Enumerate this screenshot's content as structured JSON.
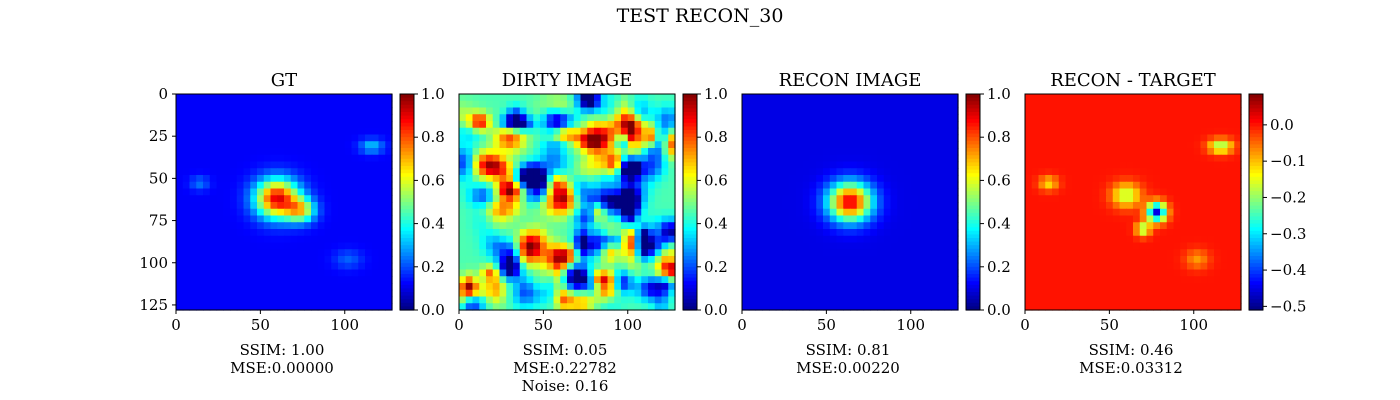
{
  "figure": {
    "title": "TEST RECON_30"
  },
  "colormap": [
    "#00007f",
    "#0000ff",
    "#007fff",
    "#00ffff",
    "#7fff7f",
    "#ffff00",
    "#ff7f00",
    "#ff0000",
    "#7f0000"
  ],
  "chart_data": [
    {
      "type": "heatmap",
      "title": "GT",
      "xlim": [
        0,
        128
      ],
      "ylim": [
        128,
        0
      ],
      "xticks": [
        0,
        50,
        100
      ],
      "yticks": [
        0,
        25,
        50,
        75,
        100,
        125
      ],
      "show_yticks": true,
      "vmin": 0.0,
      "vmax": 1.0,
      "colorbar_ticks": [
        "0.0",
        "0.2",
        "0.4",
        "0.6",
        "0.8",
        "1.0"
      ],
      "colorbar_values": [
        0.0,
        0.2,
        0.4,
        0.6,
        0.8,
        1.0
      ],
      "background": 0.12,
      "blobs": [
        {
          "x": 60,
          "y": 62,
          "sx": 9,
          "sy": 8,
          "a": 0.78
        },
        {
          "x": 74,
          "y": 69,
          "sx": 6,
          "sy": 5,
          "a": 0.45
        },
        {
          "x": 116,
          "y": 31,
          "sx": 5,
          "sy": 3,
          "a": 0.2
        },
        {
          "x": 14,
          "y": 53,
          "sx": 4,
          "sy": 3,
          "a": 0.12
        },
        {
          "x": 102,
          "y": 98,
          "sx": 6,
          "sy": 4,
          "a": 0.1
        }
      ],
      "caption": [
        "SSIM: 1.00",
        "MSE:0.00000"
      ]
    },
    {
      "type": "heatmap",
      "title": "DIRTY IMAGE",
      "xlim": [
        0,
        128
      ],
      "ylim": [
        128,
        0
      ],
      "xticks": [
        0,
        50,
        100
      ],
      "yticks": [
        0,
        25,
        50,
        75,
        100,
        125
      ],
      "show_yticks": false,
      "vmin": 0.0,
      "vmax": 1.0,
      "colorbar_ticks": [
        "0.0",
        "0.2",
        "0.4",
        "0.6",
        "0.8",
        "1.0"
      ],
      "colorbar_values": [
        0.0,
        0.2,
        0.4,
        0.6,
        0.8,
        1.0
      ],
      "noise": true,
      "caption": [
        "SSIM: 0.05",
        "MSE:0.22782",
        "Noise: 0.16"
      ]
    },
    {
      "type": "heatmap",
      "title": "RECON IMAGE",
      "xlim": [
        0,
        128
      ],
      "ylim": [
        128,
        0
      ],
      "xticks": [
        0,
        50,
        100
      ],
      "yticks": [
        0,
        25,
        50,
        75,
        100,
        125
      ],
      "show_yticks": false,
      "vmin": 0.0,
      "vmax": 1.0,
      "colorbar_ticks": [
        "0.0",
        "0.2",
        "0.4",
        "0.6",
        "0.8",
        "1.0"
      ],
      "colorbar_values": [
        0.0,
        0.2,
        0.4,
        0.6,
        0.8,
        1.0
      ],
      "background": 0.1,
      "blobs": [
        {
          "x": 64,
          "y": 64,
          "sx": 9,
          "sy": 8,
          "a": 0.8
        }
      ],
      "caption": [
        "SSIM: 0.81",
        "MSE:0.00220"
      ]
    },
    {
      "type": "heatmap",
      "title": "RECON - TARGET",
      "xlim": [
        0,
        128
      ],
      "ylim": [
        128,
        0
      ],
      "xticks": [
        0,
        50,
        100
      ],
      "yticks": [
        0,
        25,
        50,
        75,
        100,
        125
      ],
      "show_yticks": false,
      "vmin": -0.51,
      "vmax": 0.085,
      "colorbar_ticks": [
        "0.0",
        "−0.1",
        "−0.2",
        "−0.3",
        "−0.4",
        "−0.5"
      ],
      "colorbar_values": [
        0.0,
        -0.1,
        -0.2,
        -0.3,
        -0.4,
        -0.5
      ],
      "background": 0.0,
      "blobs": [
        {
          "x": 78,
          "y": 70,
          "sx": 4,
          "sy": 4,
          "a": -0.45
        },
        {
          "x": 60,
          "y": 60,
          "sx": 6,
          "sy": 5,
          "a": -0.18
        },
        {
          "x": 70,
          "y": 80,
          "sx": 3,
          "sy": 3,
          "a": -0.2
        },
        {
          "x": 116,
          "y": 31,
          "sx": 5,
          "sy": 3,
          "a": -0.2
        },
        {
          "x": 14,
          "y": 53,
          "sx": 4,
          "sy": 3,
          "a": -0.12
        },
        {
          "x": 102,
          "y": 98,
          "sx": 5,
          "sy": 4,
          "a": -0.08
        }
      ],
      "caption": [
        "SSIM: 0.46",
        "MSE:0.03312"
      ]
    }
  ]
}
